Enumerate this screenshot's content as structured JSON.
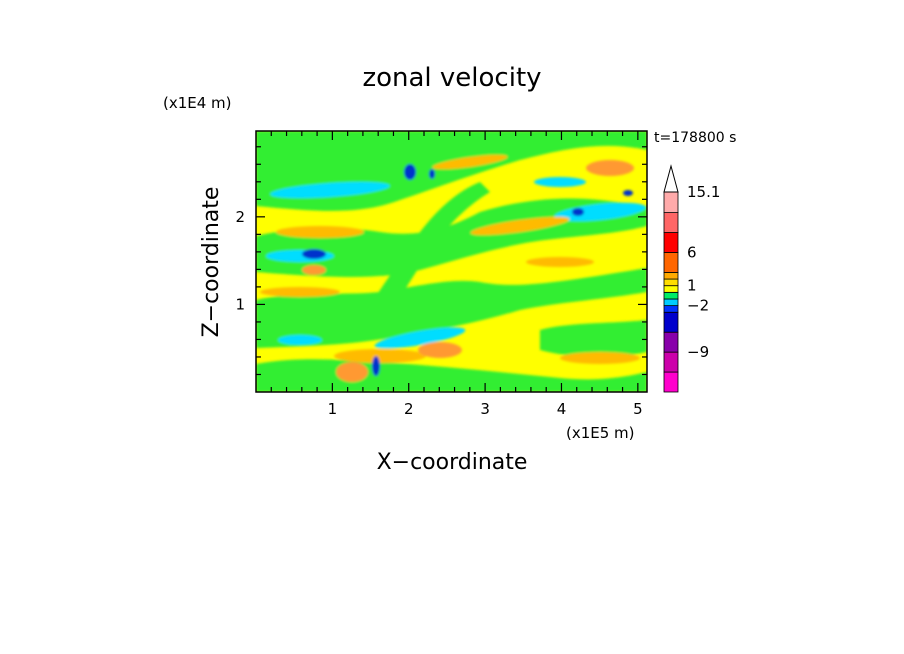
{
  "chart_data": {
    "type": "heatmap",
    "title": "zonal velocity",
    "xlabel": "X−coordinate",
    "ylabel": "Z−coordinate",
    "x_multiplier": "(x1E5 m)",
    "y_multiplier": "(x1E4 m)",
    "time_label": "t=178800 s",
    "xlim": [
      0,
      5.12
    ],
    "ylim": [
      0,
      2.98
    ],
    "x_ticks": [
      "1",
      "2",
      "3",
      "4",
      "5"
    ],
    "y_ticks": [
      "1",
      "2"
    ],
    "colorbar": {
      "levels": [
        -15,
        -12,
        -9,
        -6,
        -3,
        -2,
        -1,
        0,
        1,
        2,
        3,
        6,
        9,
        12,
        15.1
      ],
      "labels": [
        "15.1",
        "6",
        "1",
        "−2",
        "−9"
      ],
      "colors": [
        "#ff00cc",
        "#cc00aa",
        "#8800aa",
        "#0000cc",
        "#0033ff",
        "#00ccff",
        "#00ee66",
        "#ffff00",
        "#ffdd00",
        "#ffaa00",
        "#ff6600",
        "#ff0000",
        "#ff6666",
        "#ffaaaa"
      ]
    },
    "regions": [
      {
        "color": "#ffff00",
        "kind": "background"
      },
      {
        "color": "#33ee33",
        "kind": "band"
      },
      {
        "color": "#00ddff",
        "kind": "band"
      },
      {
        "color": "#ffbb00",
        "kind": "band"
      },
      {
        "color": "#ff9933",
        "kind": "blob"
      },
      {
        "color": "#0033cc",
        "kind": "blob"
      }
    ]
  }
}
